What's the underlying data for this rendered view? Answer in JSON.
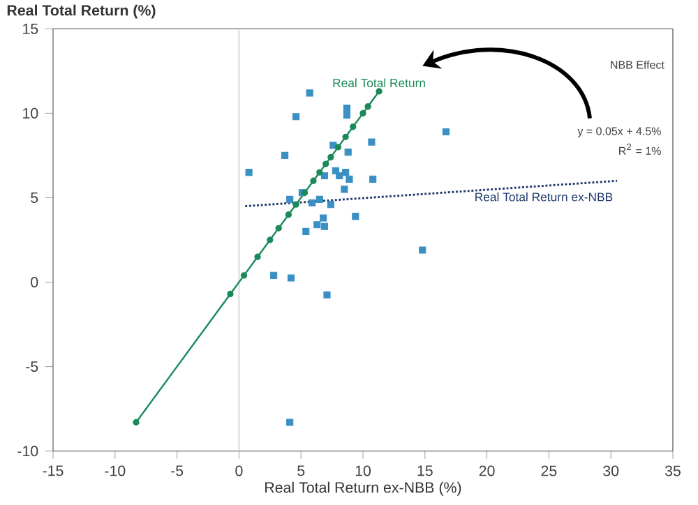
{
  "chart_data": {
    "type": "scatter",
    "ylabel": "Real Total Return (%)",
    "xlabel": "Real Total Return ex-NBB (%)",
    "xlim": [
      -15,
      35
    ],
    "xticks": [
      -15,
      -10,
      -5,
      0,
      5,
      10,
      15,
      20,
      25,
      30,
      35
    ],
    "ylim": [
      -10,
      15
    ],
    "yticks": [
      -10,
      -5,
      0,
      5,
      10,
      15
    ],
    "grid": false,
    "legend": false,
    "series": [
      {
        "marker": "square",
        "color": "#3a8fc4",
        "x": [
          5.7,
          4.6,
          8.7,
          8.7,
          16.7,
          10.7,
          3.7,
          7.6,
          8.8,
          0.8,
          7.8,
          8.1,
          8.6,
          8.9,
          8.5,
          10.8,
          6.9,
          5.1,
          4.1,
          6.5,
          5.9,
          7.4,
          6.8,
          9.4,
          5.4,
          6.3,
          6.9,
          14.8,
          2.8,
          4.2,
          7.1,
          4.1
        ],
        "values": [
          11.2,
          9.8,
          10.3,
          9.9,
          8.9,
          8.3,
          7.5,
          8.1,
          7.7,
          6.5,
          6.6,
          6.3,
          6.5,
          6.1,
          5.5,
          6.1,
          6.3,
          5.3,
          4.9,
          4.9,
          4.7,
          4.6,
          3.8,
          3.9,
          3.0,
          3.4,
          3.3,
          1.9,
          0.4,
          0.25,
          -0.75,
          -8.3
        ]
      },
      {
        "type": "line",
        "name": "Real Total Return",
        "marker": "circle",
        "line_style": "solid",
        "color": "#1a8a5a",
        "x": [
          -8.3,
          -0.7,
          0.4,
          1.5,
          2.5,
          3.2,
          4,
          4.6,
          5.3,
          6,
          6.5,
          7,
          7.4,
          8,
          8.6,
          9.2,
          10,
          10.4,
          11.3
        ],
        "values": [
          -8.3,
          -0.7,
          0.4,
          1.5,
          2.5,
          3.2,
          4,
          4.6,
          5.3,
          6,
          6.5,
          7,
          7.4,
          8,
          8.6,
          9.2,
          10,
          10.4,
          11.3
        ]
      },
      {
        "type": "line",
        "name": "Real Total Return ex-NBB",
        "marker": "none",
        "line_style": "dotted",
        "color": "#1f3a6b",
        "x": [
          0.5,
          30.5
        ],
        "values": [
          4.5,
          6.0
        ]
      }
    ],
    "ref_lines": [
      {
        "axis": "x",
        "value": 0,
        "color": "#d0d0d0",
        "line_style": "solid"
      }
    ],
    "annotations": [
      "NBB Effect",
      "y = 0.05x + 4.5%",
      "R$^{2}$ = 1%"
    ]
  }
}
